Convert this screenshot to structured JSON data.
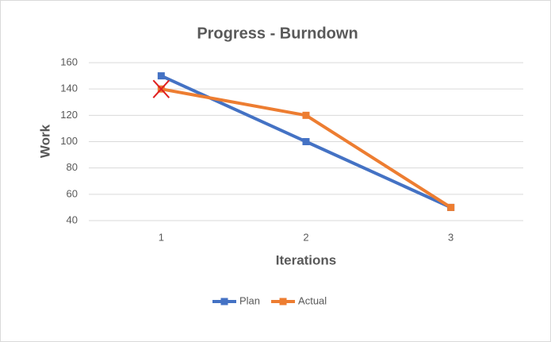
{
  "chart_data": {
    "type": "line",
    "title": "Progress - Burndown",
    "x_label": "Iterations",
    "y_label": "Work",
    "categories": [
      "1",
      "2",
      "3"
    ],
    "series": [
      {
        "name": "Plan",
        "color": "#4472c4",
        "values": [
          150,
          100,
          50
        ]
      },
      {
        "name": "Actual",
        "color": "#ed7d31",
        "values": [
          140,
          120,
          50
        ]
      }
    ],
    "ylim": [
      40,
      160
    ],
    "yticks": [
      40,
      60,
      80,
      100,
      120,
      140,
      160
    ],
    "grid": true,
    "legend": "bottom"
  }
}
